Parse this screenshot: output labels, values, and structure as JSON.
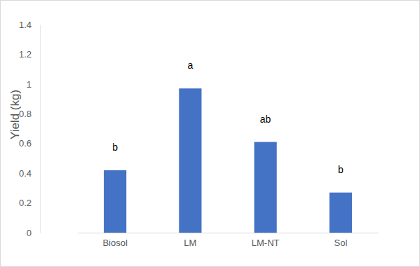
{
  "chart_data": {
    "type": "bar",
    "y_label": "Yield (kg)",
    "categories": [
      "Biosol",
      "LM",
      "LM-NT",
      "Sol"
    ],
    "values": [
      0.42,
      0.97,
      0.61,
      0.27
    ],
    "annotations": [
      "b",
      "a",
      "ab",
      "b"
    ],
    "color": "#4472c4",
    "ylim": [
      0,
      1.4
    ],
    "yticks": [
      0,
      0.2,
      0.4,
      0.6,
      0.8,
      1,
      1.2,
      1.4
    ],
    "grid": false
  }
}
